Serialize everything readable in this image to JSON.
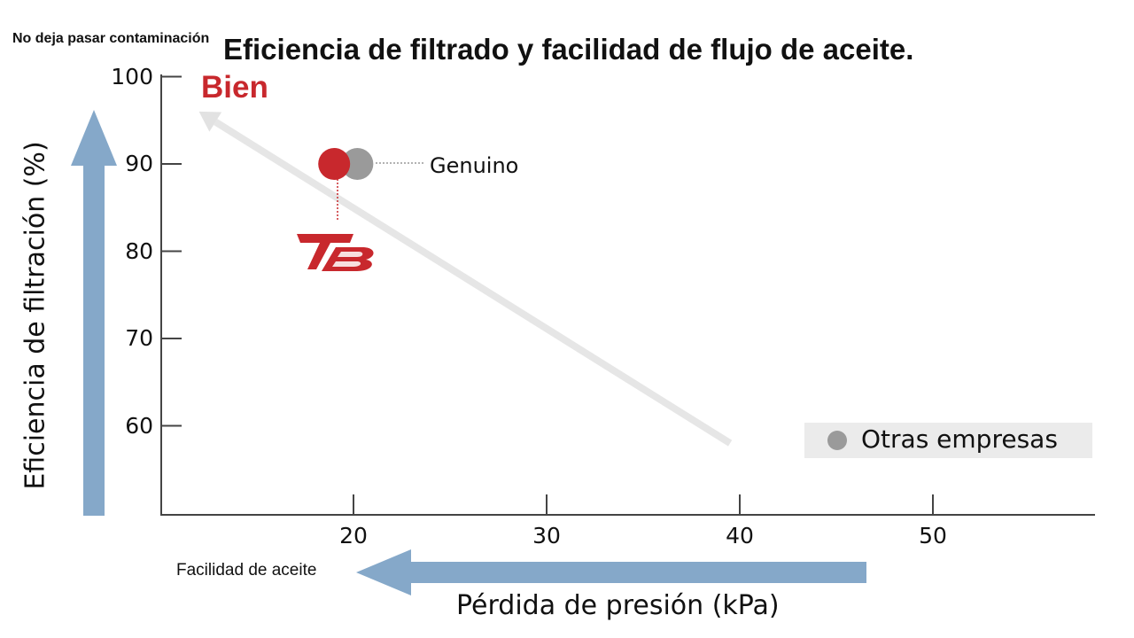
{
  "header": {
    "top_note": "No deja pasar contaminación",
    "title": "Eficiencia de filtrado y facilidad de flujo de aceite."
  },
  "annotations": {
    "bien": "Bien",
    "genuino": "Genuino",
    "facilidad": "Facilidad de aceite"
  },
  "legend": {
    "label": "Otras empresas"
  },
  "colors": {
    "brand_red": "#c8282d",
    "other_gray": "#9a9a9a",
    "arrow_blue": "#85a8c9",
    "trend_gray": "#e6e6e6"
  },
  "icons": [
    "tb-logo-icon",
    "up-arrow-icon",
    "left-arrow-icon"
  ],
  "chart_data": {
    "type": "scatter",
    "title": "Eficiencia de filtrado y facilidad de flujo de aceite.",
    "xlabel": "Pérdida de presión (kPa)",
    "ylabel": "Eficiencia de filtración (%)",
    "xlim": [
      10,
      58
    ],
    "ylim": [
      50,
      100
    ],
    "x_ticks": [
      20,
      30,
      40,
      50
    ],
    "y_ticks": [
      60,
      70,
      80,
      90,
      100
    ],
    "grid": false,
    "legend_position": "bottom-right",
    "series": [
      {
        "name": "",
        "color": "#c8282d",
        "points": [
          {
            "x": 19,
            "y": 90
          }
        ]
      },
      {
        "name": "Genuino",
        "color": "#9a9a9a",
        "points": [
          {
            "x": 20.2,
            "y": 90
          }
        ]
      },
      {
        "name": "Otras empresas",
        "color": "#9a9a9a",
        "points": []
      }
    ],
    "trend_arrow": {
      "from": {
        "x": 39.5,
        "y": 58
      },
      "to": {
        "x": 12,
        "y": 96
      }
    }
  }
}
